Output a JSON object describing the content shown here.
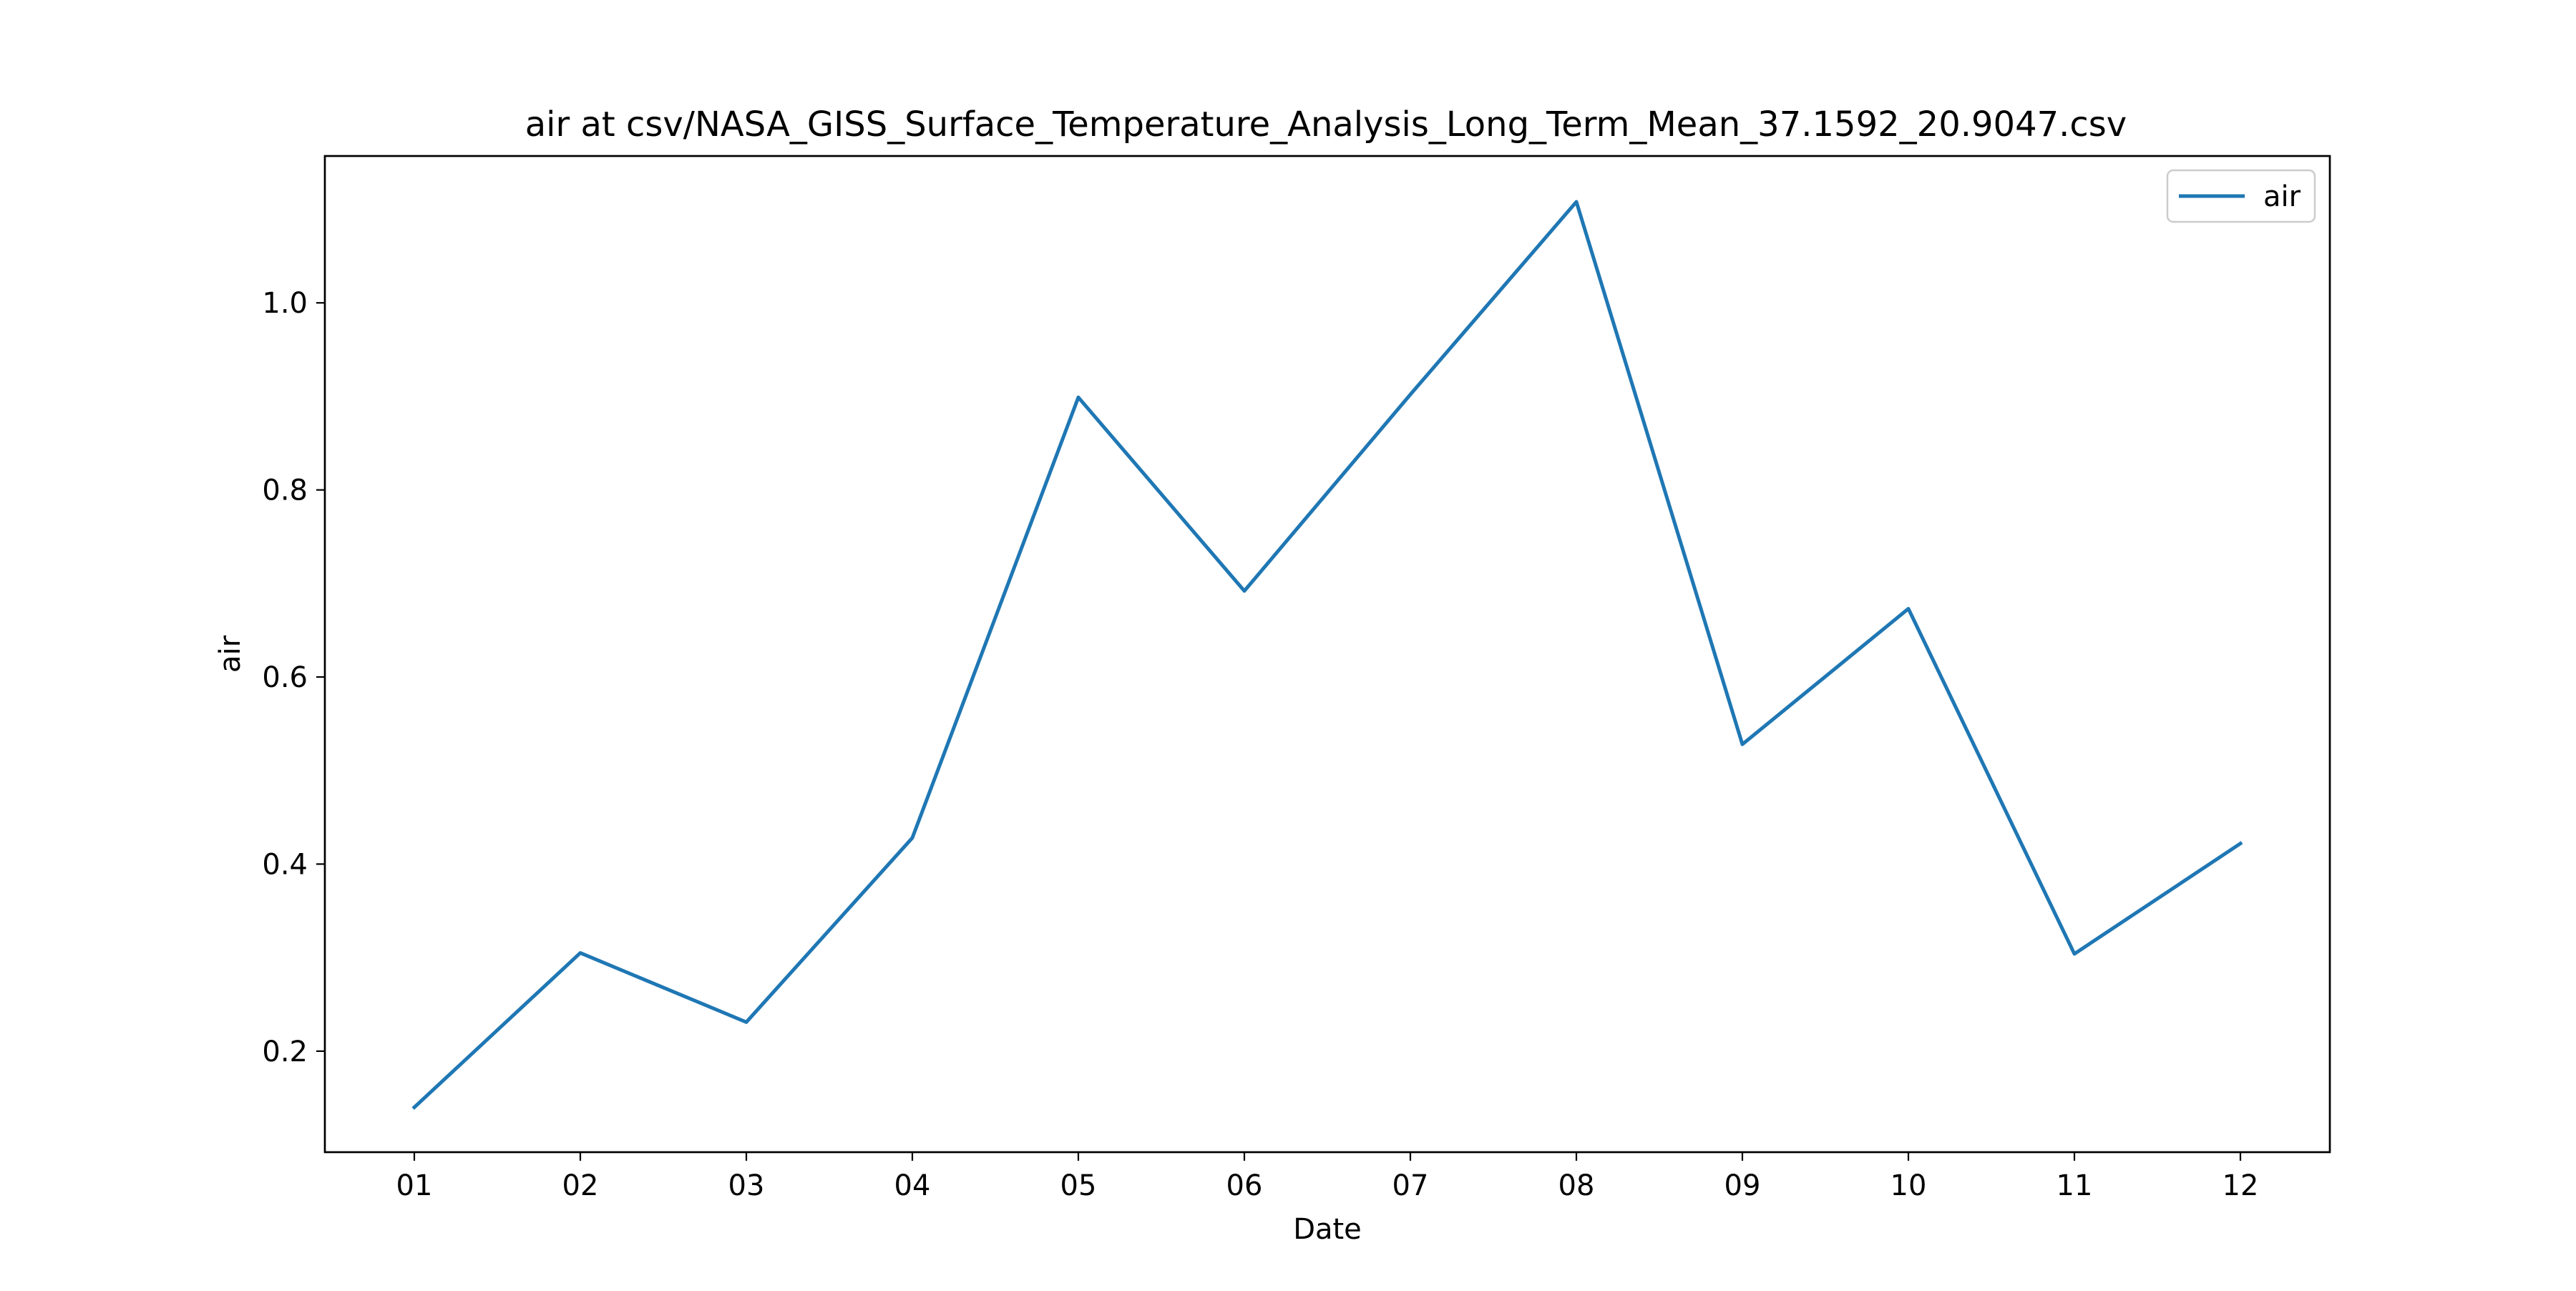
{
  "chart_data": {
    "type": "line",
    "title": "air at csv/NASA_GISS_Surface_Temperature_Analysis_Long_Term_Mean_37.1592_20.9047.csv",
    "xlabel": "Date",
    "ylabel": "air",
    "categories": [
      "01",
      "02",
      "03",
      "04",
      "05",
      "06",
      "07",
      "08",
      "09",
      "10",
      "11",
      "12"
    ],
    "series": [
      {
        "name": "air",
        "color": "#1f77b4",
        "values": [
          0.14,
          0.305,
          0.231,
          0.428,
          0.899,
          0.692,
          0.902,
          1.108,
          0.528,
          0.673,
          0.304,
          0.422
        ]
      }
    ],
    "ylim": [
      0.092,
      1.157
    ],
    "yticks": [
      0.2,
      0.4,
      0.6,
      0.8,
      1.0
    ],
    "ytick_labels": [
      "0.2",
      "0.4",
      "0.6",
      "0.8",
      "1.0"
    ],
    "grid": false,
    "legend_position": "top-right"
  }
}
